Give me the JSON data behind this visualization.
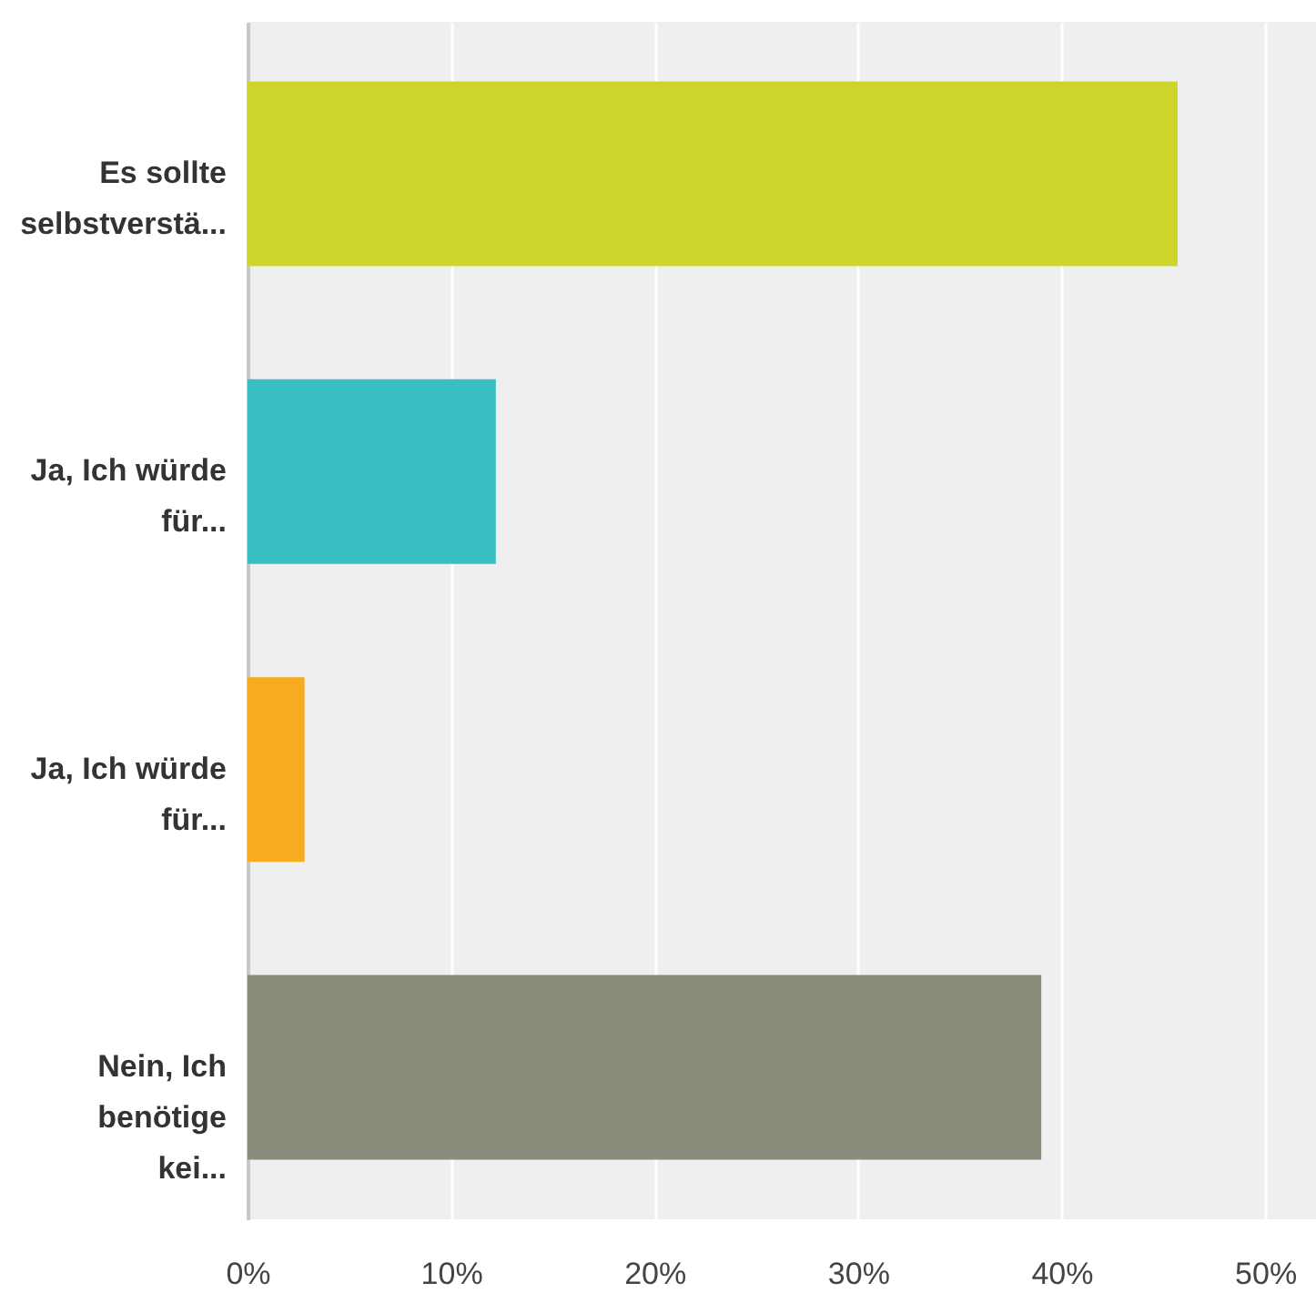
{
  "chart_data": {
    "type": "bar",
    "orientation": "horizontal",
    "categories": [
      "Es sollte selbstverstä...",
      "Ja, Ich würde für...",
      "Ja, Ich würde für...",
      "Nein, Ich benötige kei..."
    ],
    "values": [
      45.7,
      12.2,
      2.8,
      39.0
    ],
    "colors": [
      "#cdd52a",
      "#38bfc1",
      "#f7ab1f",
      "#8a8b7a"
    ],
    "xlim": [
      0,
      52.5
    ],
    "xticks": [
      {
        "value": 0,
        "label": "0%"
      },
      {
        "value": 10,
        "label": "10%"
      },
      {
        "value": 20,
        "label": "20%"
      },
      {
        "value": 30,
        "label": "30%"
      },
      {
        "value": 40,
        "label": "40%"
      },
      {
        "value": 50,
        "label": "50%"
      }
    ],
    "grid": "x",
    "legend": false
  }
}
